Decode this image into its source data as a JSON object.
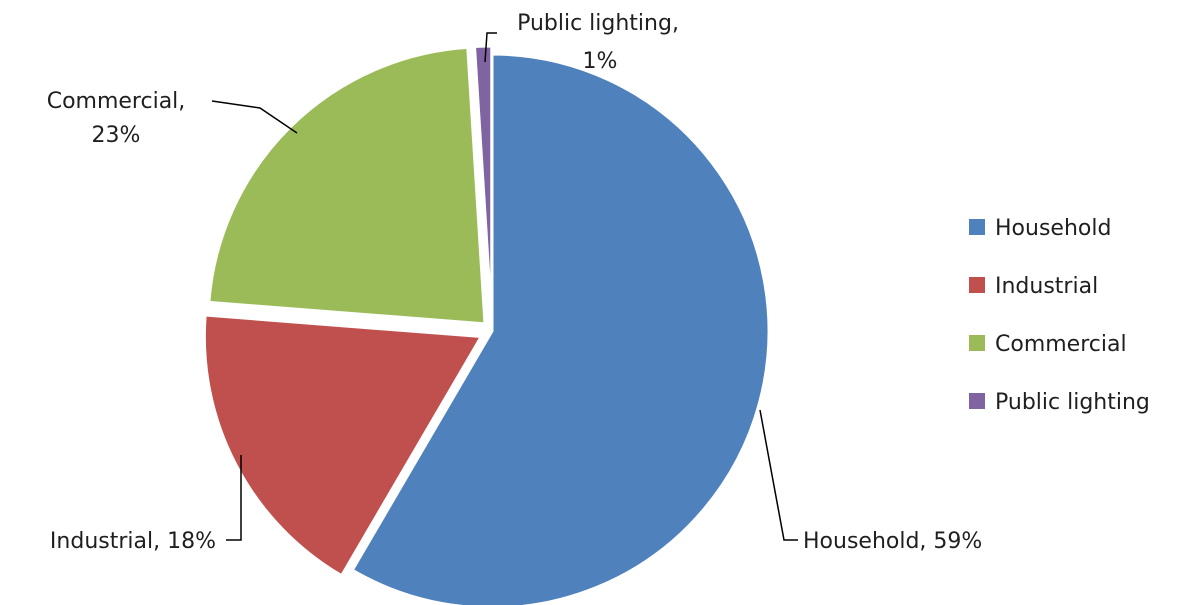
{
  "chart_data": {
    "type": "pie",
    "categories": [
      "Household",
      "Industrial",
      "Commercial",
      "Public lighting"
    ],
    "values": [
      59,
      18,
      23,
      1
    ],
    "unit": "%",
    "colors": [
      "#4f81bd",
      "#c0504d",
      "#9bbb59",
      "#8064a2"
    ],
    "exploded": true,
    "data_labels": {
      "household": {
        "line1": "Household, 59%"
      },
      "industrial": {
        "line1": "Industrial, 18%"
      },
      "commercial": {
        "line1": "Commercial,",
        "line2": "23%"
      },
      "public_lighting": {
        "line1": "Public lighting,",
        "line2": "1%"
      }
    },
    "legend": {
      "position": "right",
      "entries": [
        "Household",
        "Industrial",
        "Commercial",
        "Public lighting"
      ]
    },
    "title": ""
  }
}
